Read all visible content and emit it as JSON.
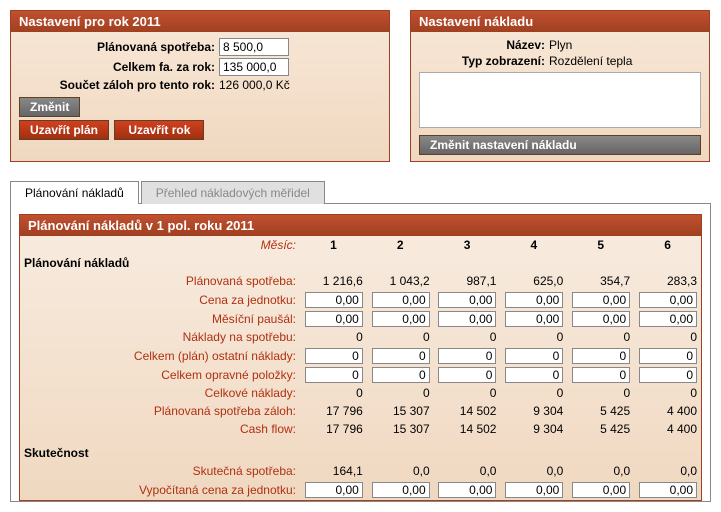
{
  "panel_year": {
    "title": "Nastavení pro rok 2011",
    "rows": {
      "planned_label": "Plánovaná spotřeba:",
      "planned_value": "8 500,0",
      "total_fa_label": "Celkem fa. za rok:",
      "total_fa_value": "135 000,0",
      "deposits_label": "Součet záloh pro tento rok:",
      "deposits_value": "126 000,0 Kč"
    },
    "buttons": {
      "change": "Změnit",
      "close_plan": "Uzavřít plán",
      "close_year": "Uzavřít rok"
    }
  },
  "panel_cost": {
    "title": "Nastavení nákladu",
    "name_label": "Název:",
    "name_value": "Plyn",
    "display_label": "Typ zobrazení:",
    "display_value": "Rozdělení tepla",
    "change_btn": "Změnit nastavení nákladu"
  },
  "tabs": {
    "active": "Plánování nákladů",
    "inactive": "Přehled nákladových měřidel"
  },
  "grid": {
    "title": "Plánování nákladů v 1 pol. roku 2011",
    "month_label": "Měsíc:",
    "months": [
      "1",
      "2",
      "3",
      "4",
      "5",
      "6"
    ],
    "section_plan": "Plánování nákladů",
    "rows_plan": {
      "planned_consumption": {
        "label": "Plánovaná spotřeba:",
        "type": "text",
        "v": [
          "1 216,6",
          "1 043,2",
          "987,1",
          "625,0",
          "354,7",
          "283,3"
        ]
      },
      "unit_price": {
        "label": "Cena za jednotku:",
        "type": "input",
        "v": [
          "0,00",
          "0,00",
          "0,00",
          "0,00",
          "0,00",
          "0,00"
        ]
      },
      "monthly_fee": {
        "label": "Měsíční paušál:",
        "type": "input",
        "v": [
          "0,00",
          "0,00",
          "0,00",
          "0,00",
          "0,00",
          "0,00"
        ]
      },
      "cost_on_consumption": {
        "label": "Náklady na spotřebu:",
        "type": "text",
        "v": [
          "0",
          "0",
          "0",
          "0",
          "0",
          "0"
        ]
      },
      "other_costs": {
        "label": "Celkem (plán) ostatní náklady:",
        "type": "input",
        "v": [
          "0",
          "0",
          "0",
          "0",
          "0",
          "0"
        ]
      },
      "corrections": {
        "label": "Celkem opravné položky:",
        "type": "input",
        "v": [
          "0",
          "0",
          "0",
          "0",
          "0",
          "0"
        ]
      },
      "total_costs": {
        "label": "Celkové náklady:",
        "type": "text",
        "v": [
          "0",
          "0",
          "0",
          "0",
          "0",
          "0"
        ]
      },
      "planned_deposits": {
        "label": "Plánovaná spotřeba záloh:",
        "type": "text",
        "v": [
          "17 796",
          "15 307",
          "14 502",
          "9 304",
          "5 425",
          "4 400"
        ]
      },
      "cash_flow": {
        "label": "Cash flow:",
        "type": "text",
        "v": [
          "17 796",
          "15 307",
          "14 502",
          "9 304",
          "5 425",
          "4 400"
        ]
      }
    },
    "section_actual": "Skutečnost",
    "rows_actual": {
      "actual_consumption": {
        "label": "Skutečná spotřeba:",
        "type": "text",
        "v": [
          "164,1",
          "0,0",
          "0,0",
          "0,0",
          "0,0",
          "0,0"
        ]
      },
      "calc_unit_price": {
        "label": "Vypočítaná cena za jednotku:",
        "type": "input",
        "v": [
          "0,00",
          "0,00",
          "0,00",
          "0,00",
          "0,00",
          "0,00"
        ]
      }
    }
  }
}
